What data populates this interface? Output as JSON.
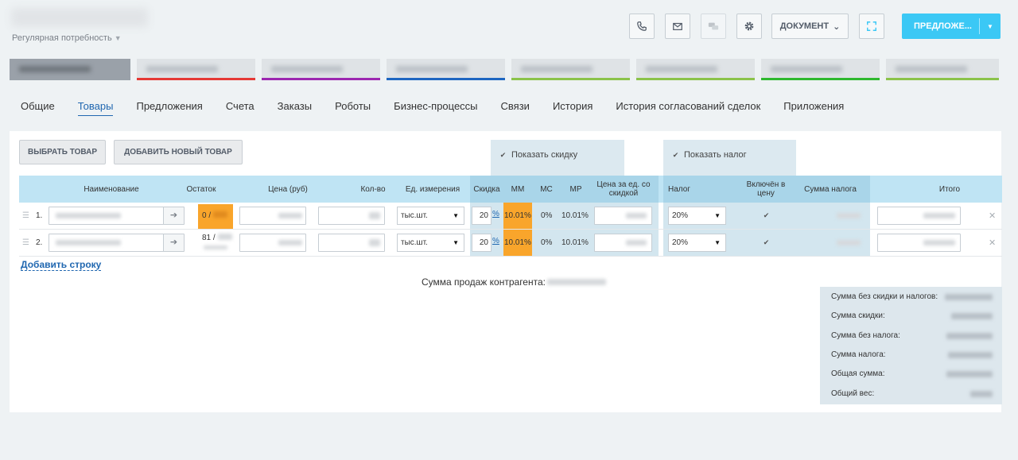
{
  "header": {
    "subtitle": "Регулярная потребность",
    "document_label": "ДОКУМЕНТ",
    "main_action_label": "ПРЕДЛОЖЕ..."
  },
  "header_icons": [
    "phone-icon",
    "mail-icon",
    "chat-icon",
    "gear-icon",
    "expand-icon"
  ],
  "stages": [
    {
      "color": "#9aa1a9",
      "bar": "#9aa1a9",
      "current": true
    },
    {
      "color": "#dfe3e6",
      "bar": "#e53935"
    },
    {
      "color": "#dfe3e6",
      "bar": "#9c27b0"
    },
    {
      "color": "#dfe3e6",
      "bar": "#1e66c1"
    },
    {
      "color": "#dfe3e6",
      "bar": "#8bc34a"
    },
    {
      "color": "#dfe3e6",
      "bar": "#8bc34a"
    },
    {
      "color": "#dfe3e6",
      "bar": "#2eb82e"
    },
    {
      "color": "#dfe3e6",
      "bar": "#8bc34a"
    }
  ],
  "tabs": [
    "Общие",
    "Товары",
    "Предложения",
    "Счета",
    "Заказы",
    "Роботы",
    "Бизнес-процессы",
    "Связи",
    "История",
    "История согласований сделок",
    "Приложения"
  ],
  "active_tab": "Товары",
  "buttons": {
    "select_product": "ВЫБРАТЬ ТОВАР",
    "add_new_product": "ДОБАВИТЬ НОВЫЙ ТОВАР"
  },
  "options": {
    "show_discount": "Показать скидку",
    "show_tax": "Показать налог"
  },
  "columns": {
    "name": "Наименование",
    "stock": "Остаток",
    "price": "Цена (руб)",
    "qty": "Кол-во",
    "unit": "Ед. измерения",
    "discount": "Скидка",
    "mm": "ММ",
    "mc": "МС",
    "mr": "МР",
    "price_discount": "Цена за ед. со скидкой",
    "tax": "Налог",
    "tax_included": "Включён в цену",
    "tax_sum": "Сумма налога",
    "total": "Итого"
  },
  "rows": [
    {
      "num": "1.",
      "stock": "0 /",
      "unit": "тыс.шт.",
      "discount": "20",
      "pct": "%",
      "mm": "10.01%",
      "mc": "0%",
      "mr": "10.01%",
      "tax": "20%"
    },
    {
      "num": "2.",
      "stock": "81 /",
      "unit": "тыс.шт.",
      "discount": "20",
      "pct": "%",
      "mm": "10.01%",
      "mc": "0%",
      "mr": "10.01%",
      "tax": "20%"
    }
  ],
  "add_row_label": "Добавить строку",
  "sales_sum_label": "Сумма продаж контрагента:",
  "totals": {
    "no_discount_no_tax": "Сумма без скидки и налогов:",
    "discount_sum": "Сумма скидки:",
    "no_tax_sum": "Сумма без налога:",
    "tax_sum": "Сумма налога:",
    "total_sum": "Общая сумма:",
    "total_weight": "Общий вес:"
  },
  "colors": {
    "accent": "#3bc8f5",
    "link": "#2067b0",
    "warning": "#f9a52b",
    "header_bg": "#bfe4f4"
  }
}
